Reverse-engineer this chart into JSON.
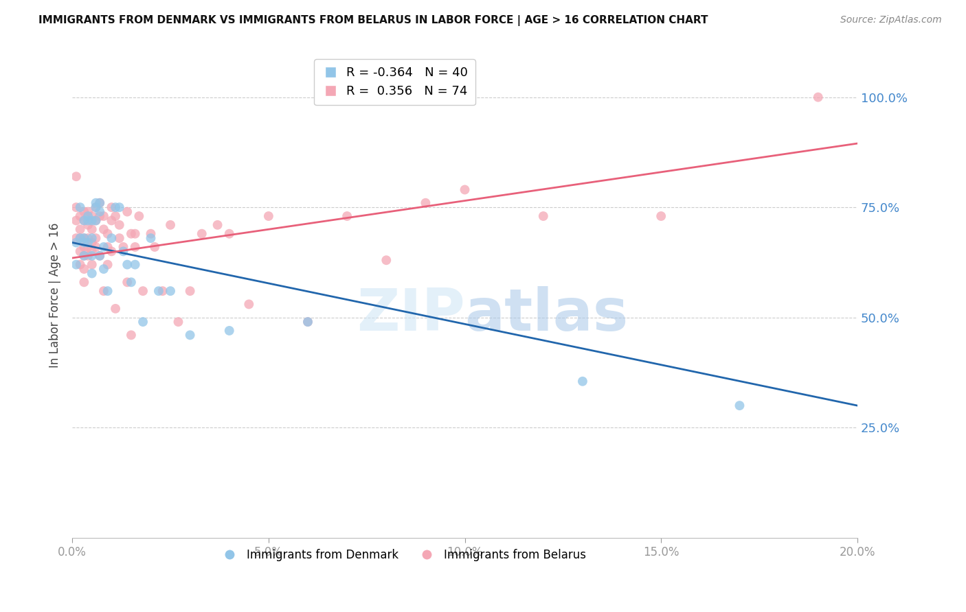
{
  "title": "IMMIGRANTS FROM DENMARK VS IMMIGRANTS FROM BELARUS IN LABOR FORCE | AGE > 16 CORRELATION CHART",
  "source": "Source: ZipAtlas.com",
  "ylabel_label": "In Labor Force | Age > 16",
  "legend_label_blue": "Immigrants from Denmark",
  "legend_label_pink": "Immigrants from Belarus",
  "R_blue": -0.364,
  "N_blue": 40,
  "R_pink": 0.356,
  "N_pink": 74,
  "xlim": [
    0.0,
    0.2
  ],
  "ylim": [
    0.0,
    1.1
  ],
  "xticks": [
    0.0,
    0.05,
    0.1,
    0.15,
    0.2
  ],
  "yticks": [
    0.25,
    0.5,
    0.75,
    1.0
  ],
  "color_blue": "#92C5E8",
  "color_pink": "#F4A7B5",
  "color_blue_line": "#2166AC",
  "color_pink_line": "#E8607A",
  "watermark_zip": "ZIP",
  "watermark_atlas": "atlas",
  "blue_line_x": [
    0.0,
    0.2
  ],
  "blue_line_y": [
    0.67,
    0.3
  ],
  "pink_line_x": [
    0.0,
    0.2
  ],
  "pink_line_y": [
    0.635,
    0.895
  ],
  "blue_dots_x": [
    0.001,
    0.001,
    0.002,
    0.002,
    0.003,
    0.003,
    0.003,
    0.003,
    0.004,
    0.004,
    0.004,
    0.005,
    0.005,
    0.005,
    0.005,
    0.006,
    0.006,
    0.006,
    0.007,
    0.007,
    0.007,
    0.008,
    0.008,
    0.009,
    0.01,
    0.011,
    0.012,
    0.013,
    0.014,
    0.015,
    0.016,
    0.018,
    0.02,
    0.022,
    0.025,
    0.03,
    0.04,
    0.06,
    0.13,
    0.17
  ],
  "blue_dots_y": [
    0.67,
    0.62,
    0.68,
    0.75,
    0.68,
    0.72,
    0.67,
    0.64,
    0.73,
    0.72,
    0.67,
    0.72,
    0.68,
    0.64,
    0.6,
    0.76,
    0.75,
    0.72,
    0.76,
    0.74,
    0.64,
    0.66,
    0.61,
    0.56,
    0.68,
    0.75,
    0.75,
    0.65,
    0.62,
    0.58,
    0.62,
    0.49,
    0.68,
    0.56,
    0.56,
    0.46,
    0.47,
    0.49,
    0.355,
    0.3
  ],
  "pink_dots_x": [
    0.001,
    0.001,
    0.001,
    0.001,
    0.002,
    0.002,
    0.002,
    0.002,
    0.002,
    0.003,
    0.003,
    0.003,
    0.003,
    0.003,
    0.003,
    0.003,
    0.004,
    0.004,
    0.004,
    0.004,
    0.004,
    0.005,
    0.005,
    0.005,
    0.005,
    0.005,
    0.006,
    0.006,
    0.006,
    0.006,
    0.007,
    0.007,
    0.007,
    0.008,
    0.008,
    0.008,
    0.009,
    0.009,
    0.009,
    0.01,
    0.01,
    0.01,
    0.011,
    0.011,
    0.012,
    0.012,
    0.013,
    0.014,
    0.014,
    0.015,
    0.015,
    0.016,
    0.016,
    0.017,
    0.018,
    0.02,
    0.021,
    0.023,
    0.025,
    0.027,
    0.03,
    0.033,
    0.037,
    0.04,
    0.045,
    0.05,
    0.06,
    0.07,
    0.08,
    0.09,
    0.1,
    0.12,
    0.15,
    0.19
  ],
  "pink_dots_y": [
    0.75,
    0.82,
    0.72,
    0.68,
    0.73,
    0.7,
    0.68,
    0.65,
    0.62,
    0.74,
    0.72,
    0.68,
    0.66,
    0.64,
    0.61,
    0.58,
    0.74,
    0.71,
    0.68,
    0.66,
    0.64,
    0.73,
    0.7,
    0.67,
    0.65,
    0.62,
    0.75,
    0.72,
    0.68,
    0.66,
    0.76,
    0.73,
    0.64,
    0.73,
    0.7,
    0.56,
    0.69,
    0.66,
    0.62,
    0.75,
    0.72,
    0.65,
    0.73,
    0.52,
    0.71,
    0.68,
    0.66,
    0.74,
    0.58,
    0.69,
    0.46,
    0.69,
    0.66,
    0.73,
    0.56,
    0.69,
    0.66,
    0.56,
    0.71,
    0.49,
    0.56,
    0.69,
    0.71,
    0.69,
    0.53,
    0.73,
    0.49,
    0.73,
    0.63,
    0.76,
    0.79,
    0.73,
    0.73,
    1.0
  ]
}
